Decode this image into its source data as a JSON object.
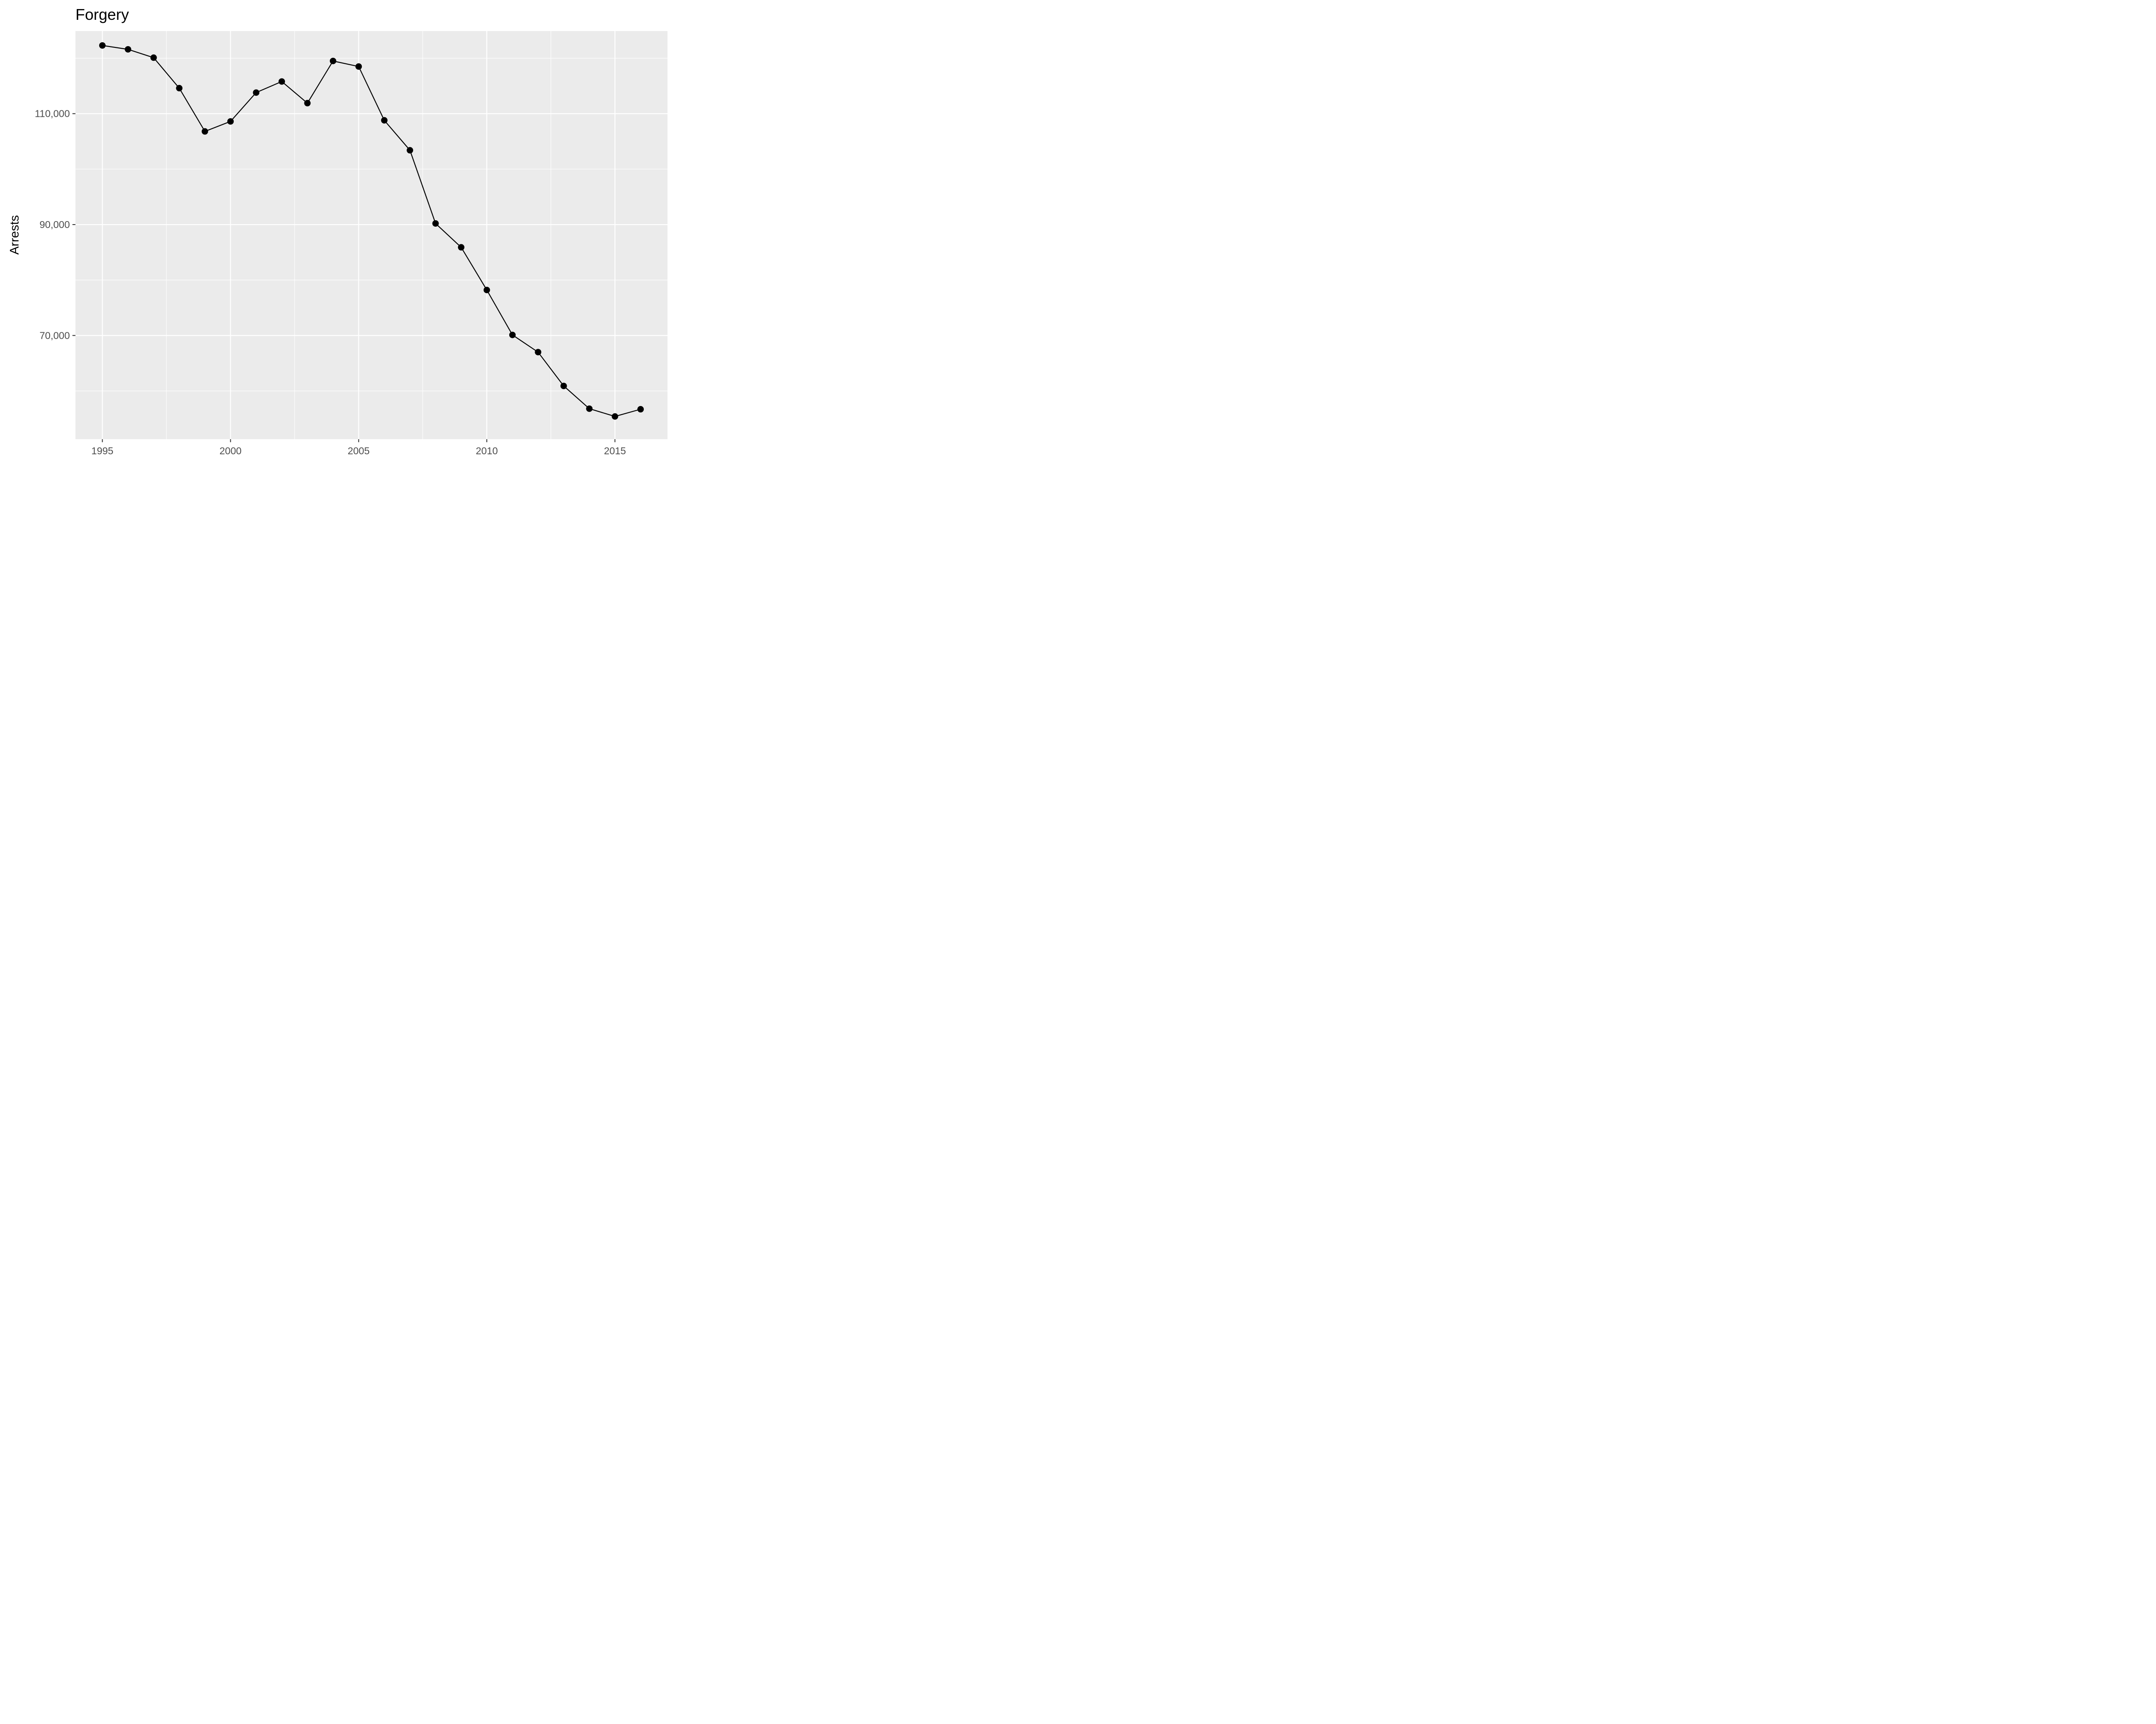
{
  "chart_data": {
    "type": "line",
    "title": "Forgery",
    "xlabel": "",
    "ylabel": "Arrests",
    "x_ticks": [
      1995,
      2000,
      2005,
      2010,
      2015
    ],
    "y_ticks": [
      70000,
      90000,
      110000
    ],
    "y_tick_labels": [
      "70,000",
      "90,000",
      "110,000"
    ],
    "xlim": [
      1993.95,
      2017.05
    ],
    "ylim": [
      51300,
      124900
    ],
    "grid": true,
    "colors": {
      "panel": "#ebebeb",
      "grid": "#ffffff",
      "line": "#000000",
      "point": "#000000"
    },
    "series": [
      {
        "x": [
          1995,
          1996,
          1997,
          1998,
          1999,
          2000,
          2001,
          2002,
          2003,
          2004,
          2005,
          2006,
          2007,
          2008,
          2009,
          2010,
          2011,
          2012,
          2013,
          2014,
          2015,
          2016
        ],
        "values": [
          122300,
          121600,
          120100,
          114600,
          106800,
          108600,
          113800,
          115800,
          111900,
          119500,
          118500,
          108800,
          103400,
          90200,
          85900,
          78200,
          70100,
          67000,
          60900,
          56800,
          55400,
          56700
        ]
      }
    ]
  }
}
